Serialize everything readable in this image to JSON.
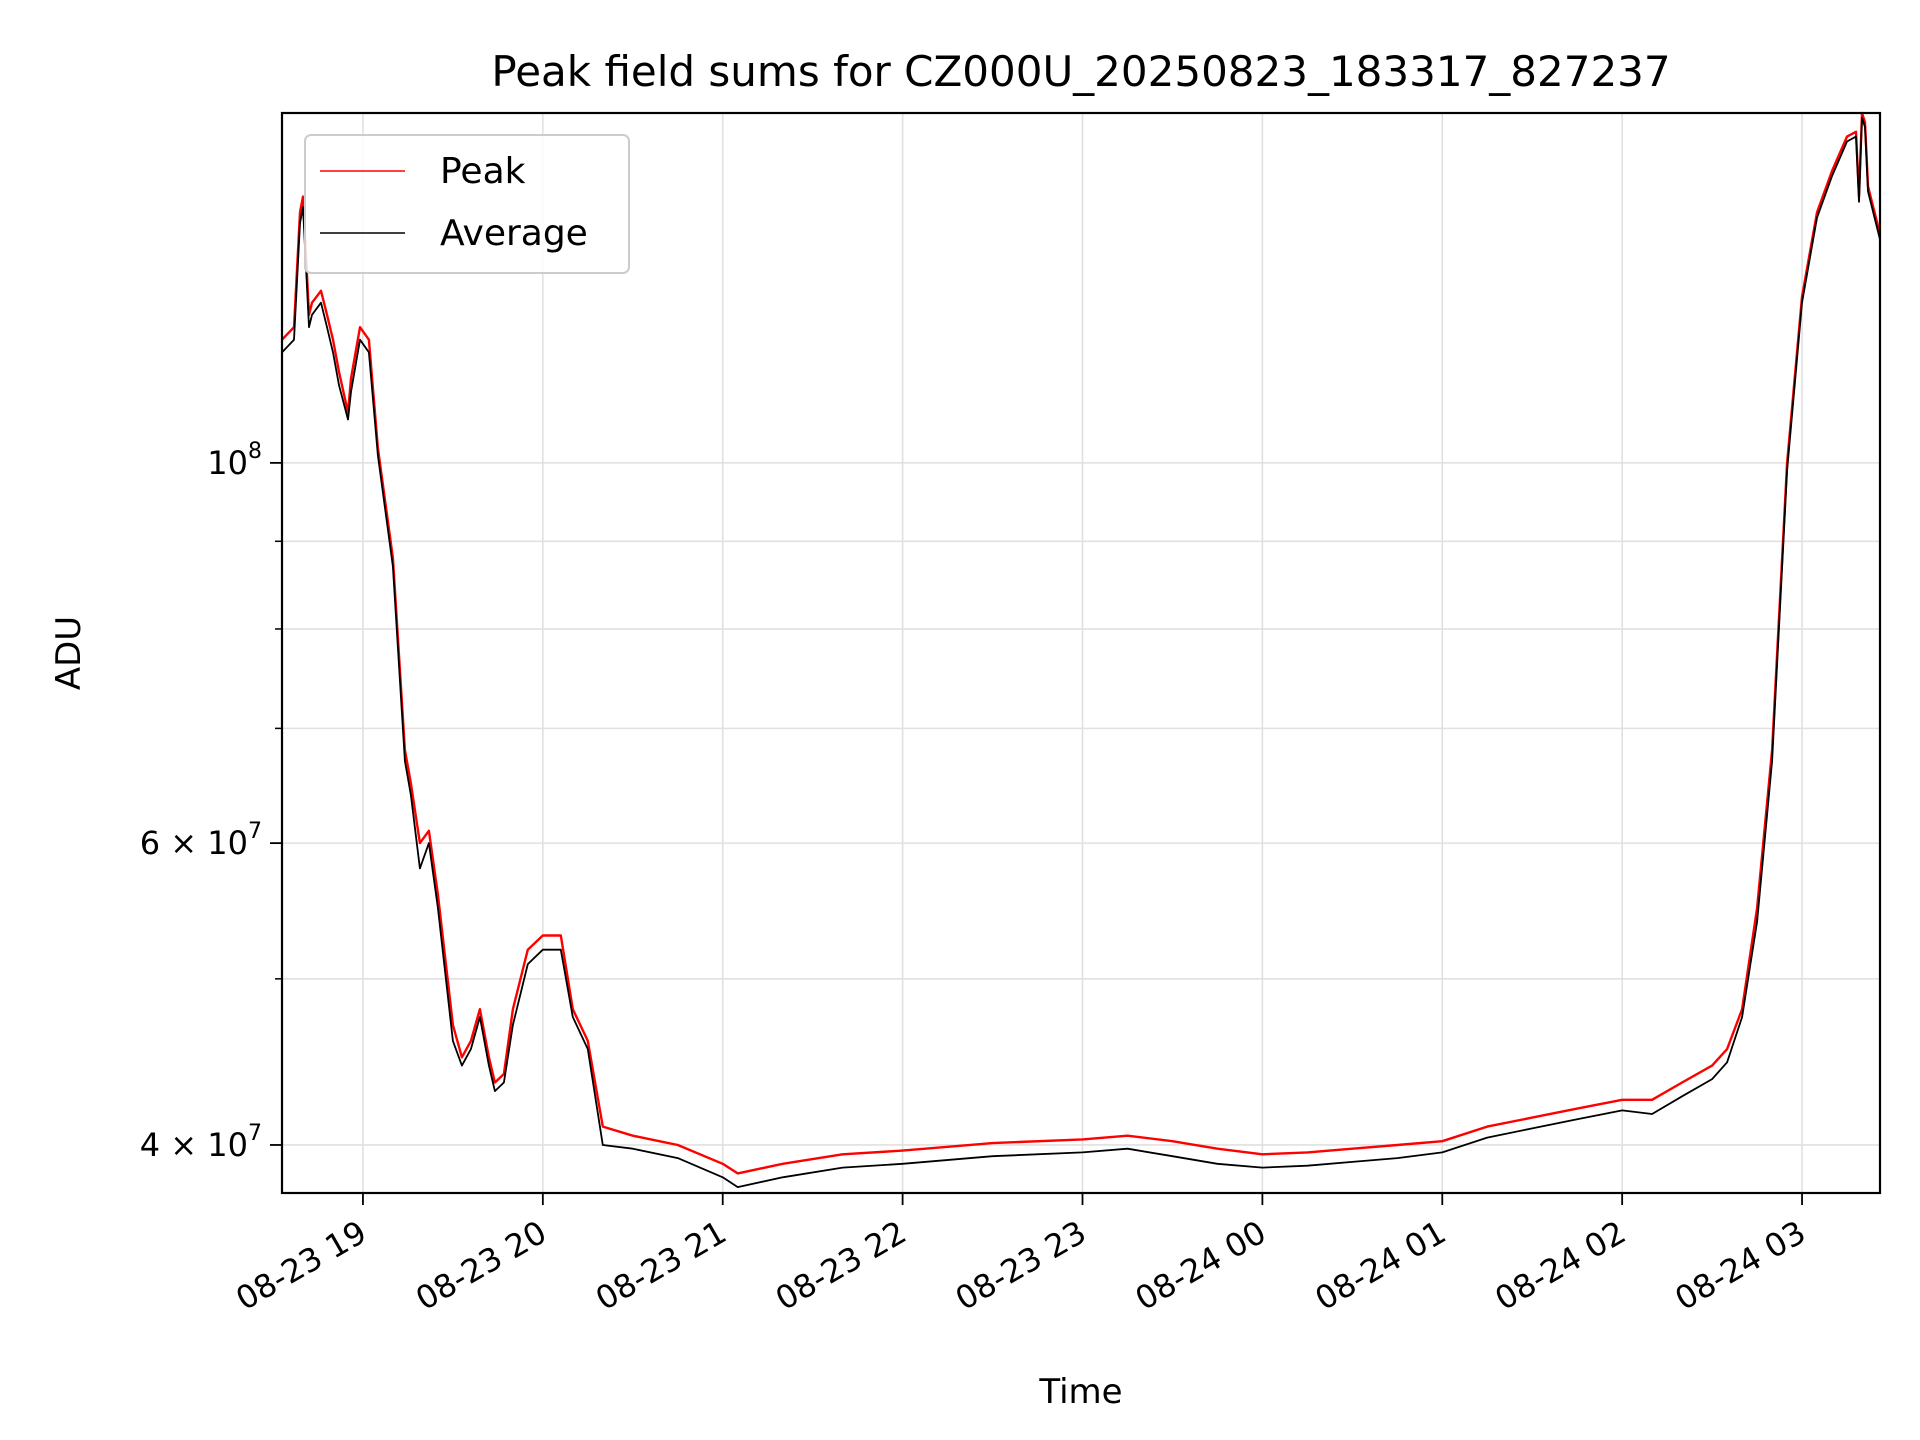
{
  "chart_data": {
    "type": "line",
    "title": "Peak field sums for CZ000U_20250823_183317_827237",
    "xlabel": "Time",
    "ylabel": "ADU",
    "y_scale": "log",
    "ylim": [
      37500000,
      160000000
    ],
    "xlim": [
      "2025-08-23 18:33",
      "2025-08-24 03:26"
    ],
    "grid": true,
    "legend_position": "top-left",
    "x_ticks": [
      {
        "value": "2025-08-23 19:00",
        "label": "08-23 19"
      },
      {
        "value": "2025-08-23 20:00",
        "label": "08-23 20"
      },
      {
        "value": "2025-08-23 21:00",
        "label": "08-23 21"
      },
      {
        "value": "2025-08-23 22:00",
        "label": "08-23 22"
      },
      {
        "value": "2025-08-23 23:00",
        "label": "08-23 23"
      },
      {
        "value": "2025-08-24 00:00",
        "label": "08-24 00"
      },
      {
        "value": "2025-08-24 01:00",
        "label": "08-24 01"
      },
      {
        "value": "2025-08-24 02:00",
        "label": "08-24 02"
      },
      {
        "value": "2025-08-24 03:00",
        "label": "08-24 03"
      }
    ],
    "y_ticks_major": [
      {
        "value": 40000000,
        "mantissa": "4",
        "exponent": "7"
      },
      {
        "value": 60000000,
        "mantissa": "6",
        "exponent": "7"
      },
      {
        "value": 100000000,
        "mantissa": "",
        "exponent": "8"
      }
    ],
    "y_ticks_minor": [
      50000000,
      70000000,
      80000000,
      90000000
    ],
    "x_times": [
      "2025-08-23 18:33",
      "2025-08-23 18:37",
      "2025-08-23 18:39",
      "2025-08-23 18:40",
      "2025-08-23 18:42",
      "2025-08-23 18:43",
      "2025-08-23 18:46",
      "2025-08-23 18:48",
      "2025-08-23 18:50",
      "2025-08-23 18:52",
      "2025-08-23 18:55",
      "2025-08-23 18:56",
      "2025-08-23 18:59",
      "2025-08-23 19:02",
      "2025-08-23 19:05",
      "2025-08-23 19:10",
      "2025-08-23 19:14",
      "2025-08-23 19:16",
      "2025-08-23 19:19",
      "2025-08-23 19:22",
      "2025-08-23 19:25",
      "2025-08-23 19:30",
      "2025-08-23 19:33",
      "2025-08-23 19:36",
      "2025-08-23 19:39",
      "2025-08-23 19:42",
      "2025-08-23 19:44",
      "2025-08-23 19:47",
      "2025-08-23 19:50",
      "2025-08-23 19:55",
      "2025-08-23 20:00",
      "2025-08-23 20:06",
      "2025-08-23 20:10",
      "2025-08-23 20:15",
      "2025-08-23 20:20",
      "2025-08-23 20:30",
      "2025-08-23 20:45",
      "2025-08-23 21:00",
      "2025-08-23 21:05",
      "2025-08-23 21:20",
      "2025-08-23 21:40",
      "2025-08-23 22:00",
      "2025-08-23 22:30",
      "2025-08-23 23:00",
      "2025-08-23 23:15",
      "2025-08-23 23:30",
      "2025-08-23 23:45",
      "2025-08-24 00:00",
      "2025-08-24 00:15",
      "2025-08-24 00:30",
      "2025-08-24 00:45",
      "2025-08-24 01:00",
      "2025-08-24 01:15",
      "2025-08-24 01:30",
      "2025-08-24 01:45",
      "2025-08-24 02:00",
      "2025-08-24 02:10",
      "2025-08-24 02:20",
      "2025-08-24 02:30",
      "2025-08-24 02:35",
      "2025-08-24 02:40",
      "2025-08-24 02:45",
      "2025-08-24 02:50",
      "2025-08-24 02:55",
      "2025-08-24 03:00",
      "2025-08-24 03:05",
      "2025-08-24 03:10",
      "2025-08-24 03:15",
      "2025-08-24 03:18",
      "2025-08-24 03:19",
      "2025-08-24 03:20",
      "2025-08-24 03:21",
      "2025-08-24 03:22",
      "2025-08-24 03:26"
    ],
    "series": [
      {
        "name": "Peak",
        "color": "#ff0000",
        "values": [
          118000000,
          120000000,
          140000000,
          143000000,
          122000000,
          124000000,
          126000000,
          122000000,
          118000000,
          113000000,
          107000000,
          112000000,
          120000000,
          118000000,
          102000000,
          88000000,
          68000000,
          65000000,
          60000000,
          61000000,
          56000000,
          47000000,
          45000000,
          46000000,
          48000000,
          45000000,
          43500000,
          44000000,
          48000000,
          52000000,
          53000000,
          53000000,
          48000000,
          46000000,
          41000000,
          40500000,
          40000000,
          39000000,
          38500000,
          39000000,
          39500000,
          39700000,
          40100000,
          40300000,
          40500000,
          40200000,
          39800000,
          39500000,
          39600000,
          39800000,
          40000000,
          40200000,
          41000000,
          41500000,
          42000000,
          42500000,
          42500000,
          43500000,
          44500000,
          45500000,
          48000000,
          55000000,
          68000000,
          100000000,
          125000000,
          140000000,
          148000000,
          155000000,
          156000000,
          143000000,
          160000000,
          158000000,
          145000000,
          136000000
        ]
      },
      {
        "name": "Average",
        "color": "#000000",
        "values": [
          116000000,
          118000000,
          138000000,
          141000000,
          120000000,
          122000000,
          124000000,
          120000000,
          116000000,
          111000000,
          106000000,
          110000000,
          118000000,
          116000000,
          101000000,
          87000000,
          67000000,
          64000000,
          58000000,
          60000000,
          55000000,
          46000000,
          44500000,
          45500000,
          47500000,
          44500000,
          43000000,
          43500000,
          47000000,
          51000000,
          52000000,
          52000000,
          47500000,
          45500000,
          40000000,
          39800000,
          39300000,
          38300000,
          37800000,
          38300000,
          38800000,
          39000000,
          39400000,
          39600000,
          39800000,
          39400000,
          39000000,
          38800000,
          38900000,
          39100000,
          39300000,
          39600000,
          40400000,
          40900000,
          41400000,
          41900000,
          41700000,
          42700000,
          43700000,
          44700000,
          47500000,
          54000000,
          67000000,
          99000000,
          124000000,
          139000000,
          147000000,
          154000000,
          155000000,
          142000000,
          159000000,
          157000000,
          144000000,
          135000000
        ]
      }
    ]
  }
}
